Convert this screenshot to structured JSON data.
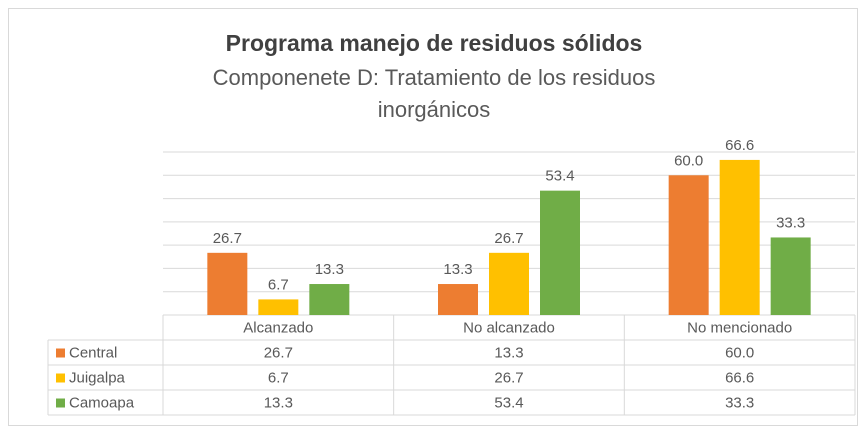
{
  "chart_data": {
    "type": "bar",
    "title": "Programa manejo de residuos sólidos",
    "subtitle": "Componenete D: Tratamiento de los residuos inorgánicos",
    "categories": [
      "Alcanzado",
      "No alcanzado",
      "No mencionado"
    ],
    "series": [
      {
        "name": "Central",
        "color": "#ED7D31",
        "values": [
          26.7,
          13.3,
          60
        ],
        "value_labels": [
          "26.7",
          "13.3",
          "60.0"
        ]
      },
      {
        "name": "Juigalpa",
        "color": "#FFC000",
        "values": [
          6.7,
          26.7,
          66.6
        ],
        "value_labels": [
          "6.7",
          "26.7",
          "66.6"
        ]
      },
      {
        "name": "Camoapa",
        "color": "#70AD47",
        "values": [
          13.3,
          53.4,
          33.3
        ],
        "value_labels": [
          "13.3",
          "53.4",
          "33.3"
        ]
      }
    ],
    "ylim": [
      0,
      70
    ],
    "yticks": [
      0,
      10,
      20,
      30,
      40,
      50,
      60,
      70
    ],
    "grid": true
  }
}
